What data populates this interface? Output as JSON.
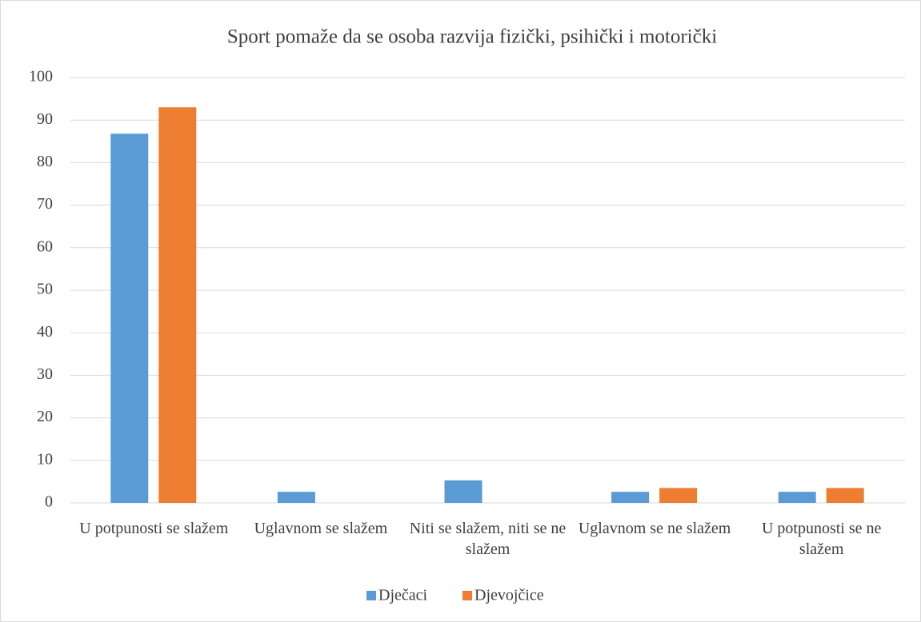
{
  "chart_data": {
    "type": "bar",
    "title": "Sport pomaže da se osoba razvija fizički, psihički i motorički",
    "categories": [
      "U potpunosti se slažem",
      "Uglavnom se slažem",
      "Niti se slažem, niti se ne slažem",
      "Uglavnom se ne slažem",
      "U potpunosti se ne slažem"
    ],
    "series": [
      {
        "name": "Dječaci",
        "color": "#5b9bd5",
        "values": [
          86.8,
          2.6,
          5.3,
          2.6,
          2.6
        ]
      },
      {
        "name": "Djevojčice",
        "color": "#ed7d31",
        "values": [
          93.0,
          0,
          0,
          3.5,
          3.5
        ]
      }
    ],
    "ylim": [
      0,
      100
    ],
    "yticks": [
      0,
      10,
      20,
      30,
      40,
      50,
      60,
      70,
      80,
      90,
      100
    ],
    "grid": true,
    "legend": "bottom"
  }
}
